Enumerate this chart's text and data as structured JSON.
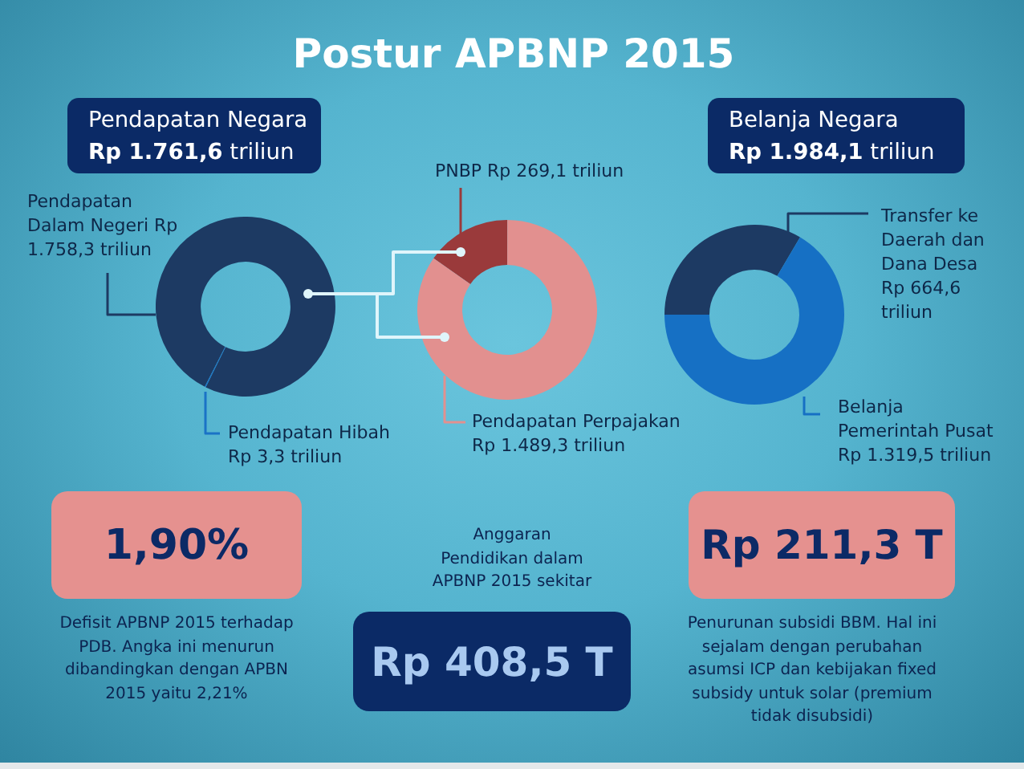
{
  "chart_data": [
    {
      "type": "other",
      "title": "Postur APBNP 2015"
    },
    {
      "type": "donut",
      "title": "Pendapatan Negara",
      "subtitle": "Rp 1.761,6 triliun",
      "categories": [
        "Pendapatan Dalam Negeri",
        "Pendapatan Hibah"
      ],
      "values": [
        1758.3,
        3.3
      ],
      "value_labels": [
        "Rp 1.758,3 triliun",
        "Rp 3,3 triliun"
      ],
      "colors": [
        "#1d3a63",
        "#1a72c6"
      ]
    },
    {
      "type": "donut",
      "categories": [
        "PNBP",
        "Pendapatan Perpajakan"
      ],
      "values": [
        269.1,
        1489.3
      ],
      "value_labels": [
        "Rp 269,1 triliun",
        "Rp 1.489,3 triliun"
      ],
      "colors": [
        "#9a3a3b",
        "#e2908f"
      ]
    },
    {
      "type": "donut",
      "title": "Belanja Negara",
      "subtitle": "Rp 1.984,1 triliun",
      "categories": [
        "Transfer ke Daerah dan Dana Desa",
        "Belanja Pemerintah Pusat"
      ],
      "values": [
        664.6,
        1319.5
      ],
      "value_labels": [
        "Rp 664,6 triliun",
        "Rp 1.319,5 triliun"
      ],
      "colors": [
        "#1d3a63",
        "#1670c4"
      ]
    },
    {
      "type": "other",
      "title": "1,90%",
      "annotations": [
        "Defisit APBNP 2015 terhadap PDB. Angka ini menurun dibandingkan dengan APBN 2015 yaitu 2,21%"
      ]
    },
    {
      "type": "other",
      "subtitle": "Anggaran Pendidikan dalam APBNP 2015 sekitar",
      "title": "Rp 408,5 T"
    },
    {
      "type": "other",
      "title": "Rp 211,3 T",
      "annotations": [
        "Penurunan subsidi BBM. Hal ini sejalam dengan perubahan asumsi ICP dan kebijakan fixed subsidy untuk solar (premium tidak disubsidi)"
      ]
    }
  ]
}
